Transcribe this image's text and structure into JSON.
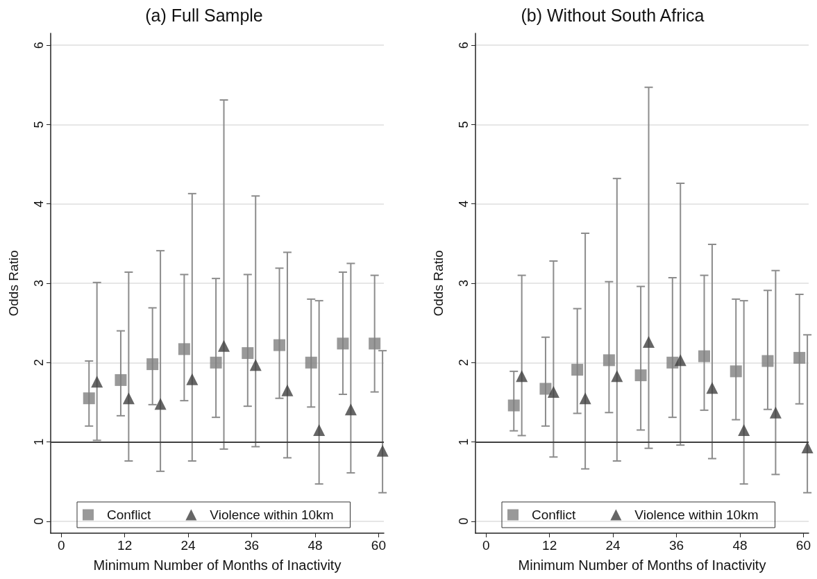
{
  "chart_data": [
    {
      "type": "scatter",
      "title": "(a) Full Sample",
      "xlabel": "Minimum Number of Months of Inactivity",
      "ylabel": "Odds Ratio",
      "xlim": [
        -2,
        61
      ],
      "xticks": [
        0,
        12,
        24,
        36,
        48,
        60
      ],
      "ylim": [
        -0.15,
        6.15
      ],
      "yticks": [
        0,
        1,
        2,
        3,
        4,
        5,
        6
      ],
      "grid": "y",
      "legend": "bottom",
      "ref_lines": [
        {
          "axis": "y",
          "value": 1,
          "color": "#404040"
        }
      ],
      "series": [
        {
          "name": "Conflict",
          "color": "#7f7f7f",
          "marker": "square",
          "x": [
            5.25,
            11.25,
            17.25,
            23.25,
            29.25,
            35.25,
            41.25,
            47.25,
            53.25,
            59.25
          ],
          "values": [
            1.55,
            1.78,
            1.98,
            2.17,
            2.0,
            2.12,
            2.22,
            2.0,
            2.24,
            2.24
          ],
          "errors": [
            [
              1.2,
              2.02
            ],
            [
              1.33,
              2.4
            ],
            [
              1.47,
              2.69
            ],
            [
              1.52,
              3.11
            ],
            [
              1.31,
              3.06
            ],
            [
              1.45,
              3.11
            ],
            [
              1.55,
              3.19
            ],
            [
              1.44,
              2.8
            ],
            [
              1.6,
              3.14
            ],
            [
              1.63,
              3.1
            ]
          ]
        },
        {
          "name": "Violence within 10km",
          "color": "#404040",
          "marker": "triangle",
          "x": [
            6.75,
            12.75,
            18.75,
            24.75,
            30.75,
            36.75,
            42.75,
            48.75,
            54.75,
            60.75
          ],
          "values": [
            1.76,
            1.55,
            1.48,
            1.79,
            2.21,
            1.97,
            1.65,
            1.15,
            1.41,
            0.89
          ],
          "errors": [
            [
              1.02,
              3.01
            ],
            [
              0.76,
              3.14
            ],
            [
              0.63,
              3.41
            ],
            [
              0.76,
              4.13
            ],
            [
              0.91,
              5.31
            ],
            [
              0.94,
              4.1
            ],
            [
              0.8,
              3.39
            ],
            [
              0.47,
              2.78
            ],
            [
              0.61,
              3.25
            ],
            [
              0.36,
              2.15
            ]
          ]
        }
      ]
    },
    {
      "type": "scatter",
      "title": "(b) Without South Africa",
      "xlabel": "Minimum Number of Months of Inactivity",
      "ylabel": "Odds Ratio",
      "xlim": [
        -2,
        61
      ],
      "xticks": [
        0,
        12,
        24,
        36,
        48,
        60
      ],
      "ylim": [
        -0.15,
        6.15
      ],
      "yticks": [
        0,
        1,
        2,
        3,
        4,
        5,
        6
      ],
      "grid": "y",
      "legend": "bottom",
      "ref_lines": [
        {
          "axis": "y",
          "value": 1,
          "color": "#404040"
        }
      ],
      "series": [
        {
          "name": "Conflict",
          "color": "#7f7f7f",
          "marker": "square",
          "x": [
            5.25,
            11.25,
            17.25,
            23.25,
            29.25,
            35.25,
            41.25,
            47.25,
            53.25,
            59.25
          ],
          "values": [
            1.46,
            1.67,
            1.91,
            2.03,
            1.84,
            2.0,
            2.08,
            1.89,
            2.02,
            2.06
          ],
          "errors": [
            [
              1.14,
              1.89
            ],
            [
              1.2,
              2.32
            ],
            [
              1.36,
              2.68
            ],
            [
              1.37,
              3.02
            ],
            [
              1.15,
              2.96
            ],
            [
              1.31,
              3.07
            ],
            [
              1.4,
              3.1
            ],
            [
              1.28,
              2.8
            ],
            [
              1.41,
              2.91
            ],
            [
              1.48,
              2.86
            ]
          ]
        },
        {
          "name": "Violence within 10km",
          "color": "#404040",
          "marker": "triangle",
          "x": [
            6.75,
            12.75,
            18.75,
            24.75,
            30.75,
            36.75,
            42.75,
            48.75,
            54.75,
            60.75
          ],
          "values": [
            1.83,
            1.63,
            1.55,
            1.83,
            2.26,
            2.03,
            1.68,
            1.15,
            1.37,
            0.93
          ],
          "errors": [
            [
              1.08,
              3.1
            ],
            [
              0.81,
              3.28
            ],
            [
              0.66,
              3.63
            ],
            [
              0.76,
              4.32
            ],
            [
              0.92,
              5.47
            ],
            [
              0.96,
              4.26
            ],
            [
              0.79,
              3.49
            ],
            [
              0.47,
              2.78
            ],
            [
              0.59,
              3.16
            ],
            [
              0.36,
              2.35
            ]
          ]
        }
      ]
    }
  ]
}
